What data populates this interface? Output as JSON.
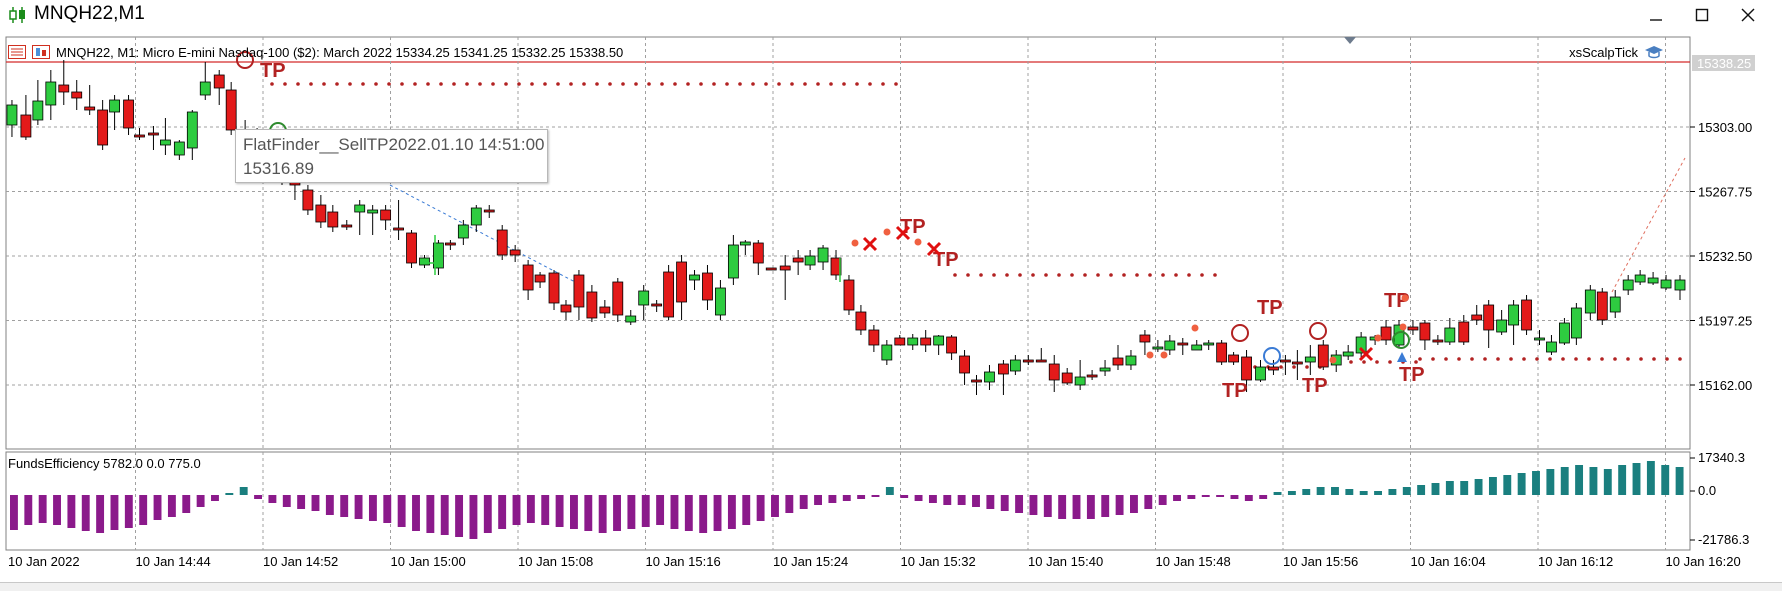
{
  "window": {
    "title": "MNQH22,M1",
    "icon": "candlestick-chart-icon",
    "controls": [
      "minimize-icon",
      "maximize-icon",
      "close-icon"
    ]
  },
  "chart": {
    "header": "MNQH22, M1:  Micro E-mini Nasdaq-100 ($2): March 2022  15334.25 15341.25 15332.25 15338.50",
    "expert_name": "xsScalpTick",
    "current_price_label": "15338.25",
    "price_axis_labels": [
      "15303.00",
      "15267.75",
      "15232.50",
      "15197.25",
      "15162.00"
    ],
    "time_axis_labels": [
      "10 Jan 2022",
      "10 Jan 14:44",
      "10 Jan 14:52",
      "10 Jan 15:00",
      "10 Jan 15:08",
      "10 Jan 15:16",
      "10 Jan 15:24",
      "10 Jan 15:32",
      "10 Jan 15:40",
      "10 Jan 15:48",
      "10 Jan 15:56",
      "10 Jan 16:04",
      "10 Jan 16:12",
      "10 Jan 16:20"
    ],
    "tp_label": "TP",
    "tooltip": {
      "line1": "FlatFinder__SellTP2022.01.10 14:51:00",
      "line2": "15316.89"
    },
    "colors": {
      "bull": "#2ecc40",
      "bear": "#e31a1a",
      "grid": "#a0a0a0",
      "tp": "#b22222",
      "hist_neg": "#8b1a8b",
      "hist_pos": "#1a7f7f"
    }
  },
  "indicator": {
    "label": "FundsEfficiency 5782.0 0.0 775.0",
    "axis_labels": [
      "17340.3",
      "0.0",
      "-21786.3"
    ]
  }
}
